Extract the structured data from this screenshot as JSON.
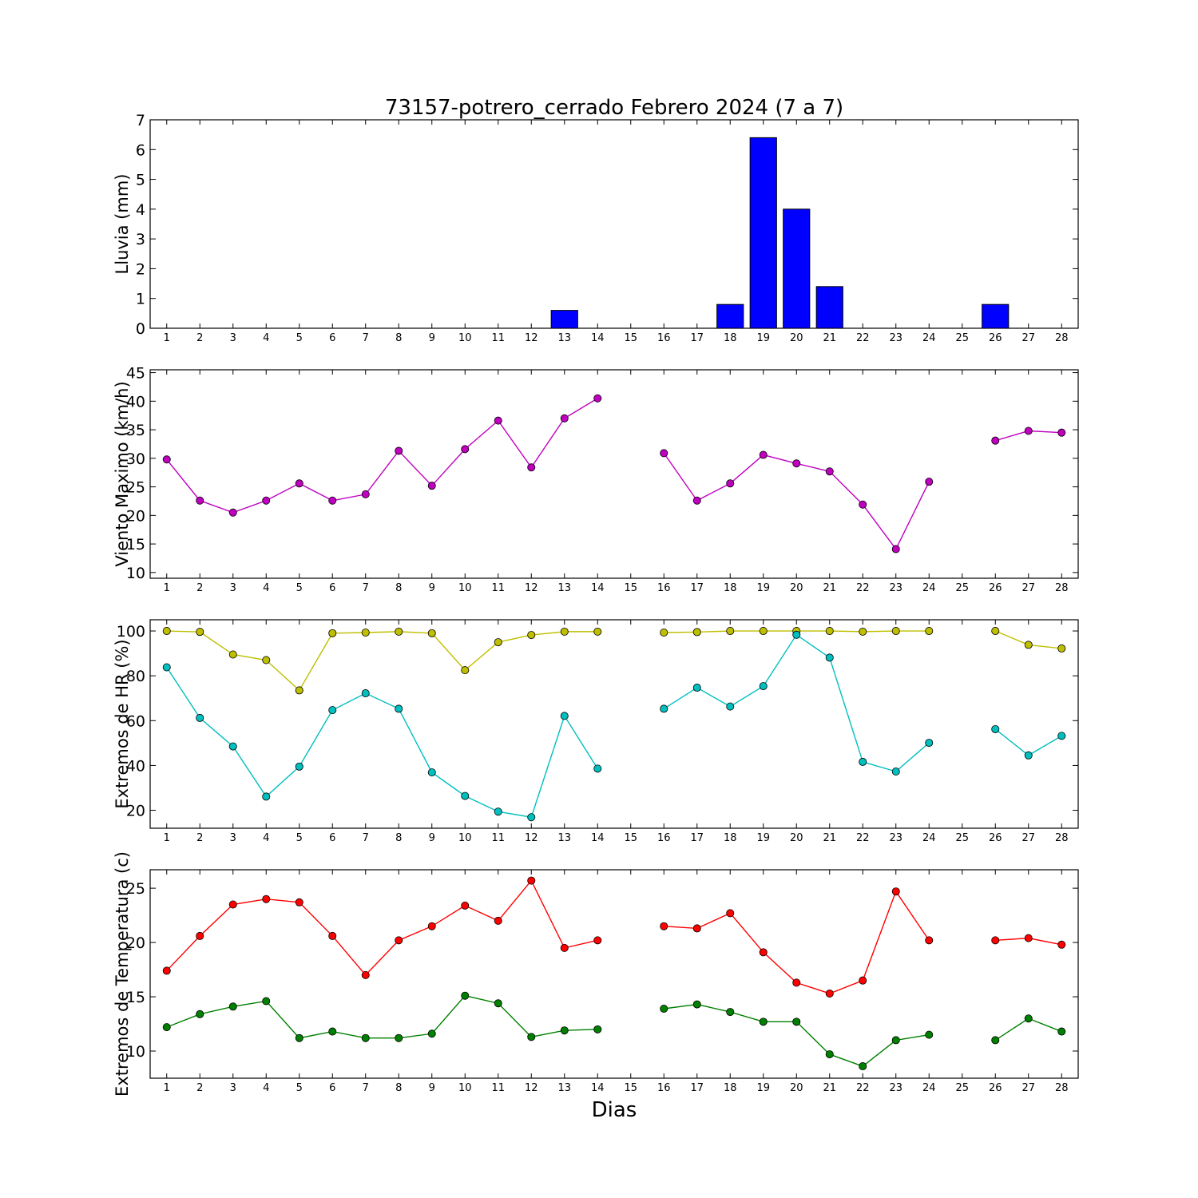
{
  "title": "73157-potrero_cerrado Febrero 2024  (7 a 7)",
  "xlabel": "Dias",
  "colors": {
    "rain_bar": "#0000ff",
    "wind": "#bf00bf",
    "hr_max": "#bfbf00",
    "hr_min": "#00bfbf",
    "temp_max": "#ff0000",
    "temp_min": "#008000"
  },
  "chart_data": [
    {
      "type": "bar",
      "ylabel": "Lluvia (mm)",
      "ylim": [
        0,
        7
      ],
      "yticks": [
        0,
        1,
        2,
        3,
        4,
        5,
        6,
        7
      ],
      "categories": [
        1,
        2,
        3,
        4,
        5,
        6,
        7,
        8,
        9,
        10,
        11,
        12,
        13,
        14,
        15,
        16,
        17,
        18,
        19,
        20,
        21,
        22,
        23,
        24,
        25,
        26,
        27,
        28
      ],
      "values": [
        0,
        0,
        0,
        0,
        0,
        0,
        0,
        0,
        0,
        0,
        0,
        0,
        0.6,
        0,
        0,
        0,
        0,
        0.8,
        6.4,
        4.0,
        1.4,
        0,
        0,
        0,
        0,
        0.8,
        0,
        0
      ]
    },
    {
      "type": "line",
      "ylabel": "Viento Maximo (km/h)",
      "ylim": [
        9,
        45.5
      ],
      "yticks": [
        10,
        15,
        20,
        25,
        30,
        35,
        40,
        45
      ],
      "x": [
        1,
        2,
        3,
        4,
        5,
        6,
        7,
        8,
        9,
        10,
        11,
        12,
        13,
        14,
        15,
        16,
        17,
        18,
        19,
        20,
        21,
        22,
        23,
        24,
        25,
        26,
        27,
        28
      ],
      "series": [
        {
          "values": [
            29.8,
            22.6,
            20.5,
            22.6,
            25.6,
            22.6,
            23.7,
            31.3,
            25.2,
            31.6,
            36.6,
            28.4,
            37.0,
            40.5,
            null,
            30.9,
            22.6,
            25.6,
            30.6,
            29.1,
            27.7,
            21.9,
            14.1,
            25.9,
            null,
            33.1,
            34.8,
            34.5
          ]
        }
      ]
    },
    {
      "type": "line",
      "ylabel": "Extremos de HR (%)",
      "ylim": [
        12,
        105
      ],
      "yticks": [
        20,
        40,
        60,
        80,
        100
      ],
      "x": [
        1,
        2,
        3,
        4,
        5,
        6,
        7,
        8,
        9,
        10,
        11,
        12,
        13,
        14,
        15,
        16,
        17,
        18,
        19,
        20,
        21,
        22,
        23,
        24,
        25,
        26,
        27,
        28
      ],
      "series": [
        {
          "values": [
            100,
            99.6,
            89.5,
            87.0,
            73.5,
            99,
            99.3,
            99.7,
            99,
            82.5,
            95,
            98.2,
            99.7,
            99.7,
            null,
            99.3,
            99.5,
            100,
            100,
            100,
            100,
            99.7,
            100,
            100,
            null,
            100,
            93.8,
            92.2
          ]
        },
        {
          "values": [
            83.8,
            61.2,
            48.5,
            26.1,
            39.5,
            64.7,
            72.2,
            65.3,
            36.9,
            26.4,
            19.4,
            16.9,
            62.1,
            38.6,
            null,
            65.3,
            74.7,
            66.3,
            75.4,
            98.3,
            88.1,
            41.6,
            37.3,
            50.1,
            null,
            56.2,
            44.5,
            53.2
          ]
        }
      ]
    },
    {
      "type": "line",
      "ylabel": "Extremos de Temperatura (c)",
      "ylim": [
        7.5,
        26.7
      ],
      "yticks": [
        10,
        15,
        20,
        25
      ],
      "x": [
        1,
        2,
        3,
        4,
        5,
        6,
        7,
        8,
        9,
        10,
        11,
        12,
        13,
        14,
        15,
        16,
        17,
        18,
        19,
        20,
        21,
        22,
        23,
        24,
        25,
        26,
        27,
        28
      ],
      "series": [
        {
          "values": [
            17.4,
            20.6,
            23.5,
            24.0,
            23.7,
            20.6,
            17.0,
            20.2,
            21.5,
            23.4,
            22.0,
            25.7,
            19.5,
            20.2,
            null,
            21.5,
            21.3,
            22.7,
            19.1,
            16.3,
            15.3,
            16.5,
            24.7,
            20.2,
            null,
            20.2,
            20.4,
            19.8
          ]
        },
        {
          "values": [
            12.2,
            13.4,
            14.1,
            14.6,
            11.2,
            11.8,
            11.2,
            11.2,
            11.6,
            15.1,
            14.4,
            11.3,
            11.9,
            12.0,
            null,
            13.9,
            14.3,
            13.6,
            12.7,
            12.7,
            9.7,
            8.6,
            11.0,
            11.5,
            null,
            11.0,
            13.0,
            11.8
          ]
        }
      ]
    }
  ]
}
